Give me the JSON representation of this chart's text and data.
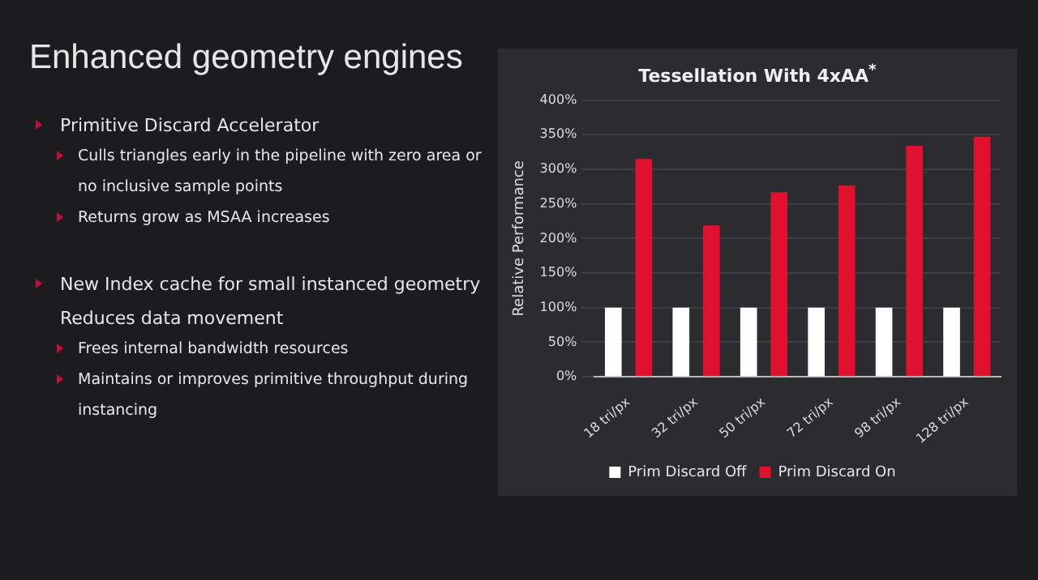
{
  "chart_data": {
    "type": "bar",
    "title": "Tessellation With 4xAA$^{*}$",
    "ylabel": "Relative Performance",
    "categories": [
      "18 tri/px",
      "32 tri/px",
      "50 tri/px",
      "72 tri/px",
      "98 tri/px",
      "128 tri/px"
    ],
    "series": [
      {
        "name": "Prim Discard Off",
        "color": "#ffffff",
        "values": [
          100,
          100,
          100,
          100,
          100,
          100
        ]
      },
      {
        "name": "Prim Discard On",
        "color": "#e0102f",
        "values": [
          315,
          219,
          267,
          277,
          334,
          347
        ]
      }
    ],
    "ylim": [
      0,
      400
    ],
    "yticks": [
      {
        "value": 0,
        "label": "0%"
      },
      {
        "value": 50,
        "label": "50%"
      },
      {
        "value": 100,
        "label": "100%"
      },
      {
        "value": 150,
        "label": "150%"
      },
      {
        "value": 200,
        "label": "200%"
      },
      {
        "value": 250,
        "label": "250%"
      },
      {
        "value": 300,
        "label": "300%"
      },
      {
        "value": 350,
        "label": "350%"
      },
      {
        "value": 400,
        "label": "400%"
      }
    ],
    "grid": "y",
    "legend": "bottom",
    "annotations": [
      "Enhanced geometry engines",
      "Primitive Discard Accelerator",
      "Culls triangles early in the pipeline with zero area or no inclusive sample points",
      "Returns grow as MSAA increases",
      "New Index cache for small instanced geometry",
      "Reduces data movement",
      "Frees internal bandwidth resources",
      "Maintains or  improves primitive throughput during instancing"
    ]
  }
}
